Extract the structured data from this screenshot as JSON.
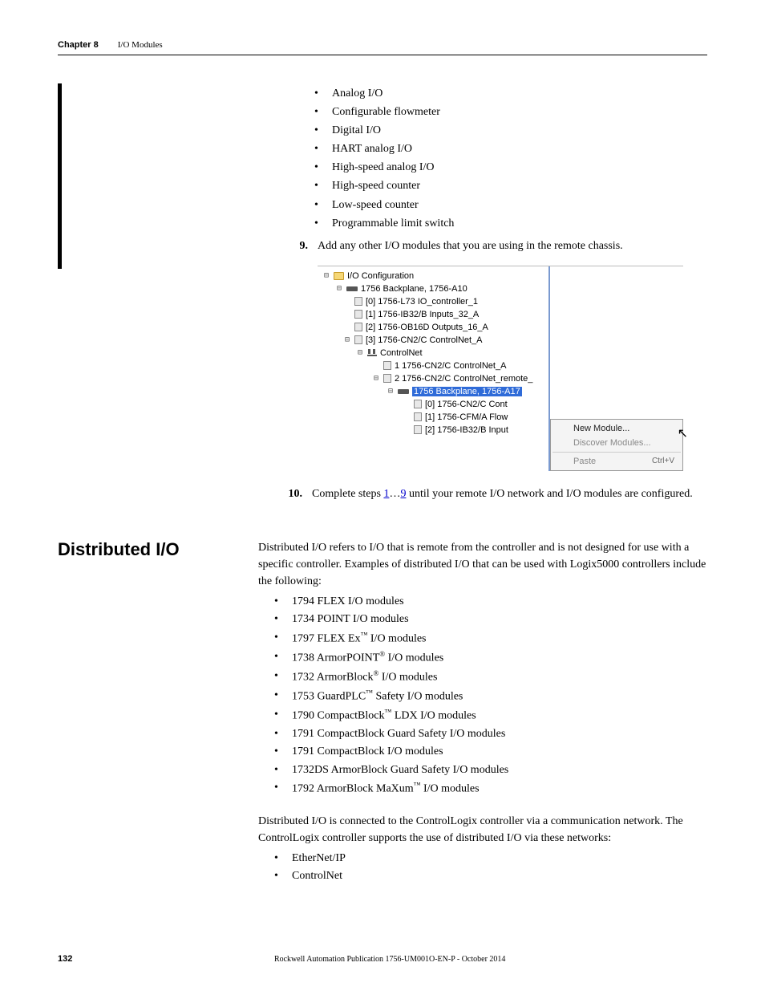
{
  "header": {
    "chapter_label": "Chapter 8",
    "chapter_title": "I/O Modules"
  },
  "io_types": [
    "Analog I/O",
    "Configurable flowmeter",
    "Digital I/O",
    "HART analog I/O",
    "High-speed analog I/O",
    "High-speed counter",
    "Low-speed counter",
    "Programmable limit switch"
  ],
  "step9": {
    "num": "9.",
    "text": "Add any other I/O modules that you are using in the remote chassis."
  },
  "tree": {
    "root": "I/O Configuration",
    "backplane": "1756 Backplane, 1756-A10",
    "items": [
      "[0] 1756-L73 IO_controller_1",
      "[1] 1756-IB32/B Inputs_32_A",
      "[2] 1756-OB16D Outputs_16_A",
      "[3] 1756-CN2/C ControlNet_A"
    ],
    "cnet": "ControlNet",
    "cnet_items": [
      "1 1756-CN2/C ControlNet_A",
      "2 1756-CN2/C ControlNet_remote_"
    ],
    "remote_backplane": "1756 Backplane, 1756-A17",
    "remote_items": [
      "[0] 1756-CN2/C Cont",
      "[1] 1756-CFM/A Flow",
      "[2] 1756-IB32/B Input"
    ]
  },
  "context_menu": {
    "new_module": "New Module...",
    "discover": "Discover Modules...",
    "paste": "Paste",
    "paste_shortcut": "Ctrl+V"
  },
  "step10": {
    "num": "10.",
    "prefix": "Complete steps ",
    "link1": "1",
    "mid": "…",
    "link2": "9",
    "suffix": " until your remote I/O network and I/O modules are configured."
  },
  "section": {
    "heading": "Distributed I/O",
    "intro": "Distributed I/O refers to I/O that is remote from the controller and is not designed for use with a specific controller. Examples of distributed I/O that can be used with Logix5000 controllers include the following:",
    "modules": [
      {
        "t": "1794 FLEX I/O modules"
      },
      {
        "t": "1734 POINT I/O modules"
      },
      {
        "pre": "1797 FLEX Ex",
        "sup": "™",
        "post": " I/O modules"
      },
      {
        "pre": "1738 ArmorPOINT",
        "sup": "®",
        "post": " I/O modules"
      },
      {
        "pre": "1732 ArmorBlock",
        "sup": "®",
        "post": " I/O modules"
      },
      {
        "pre": "1753 GuardPLC",
        "sup": "™",
        "post": " Safety I/O modules"
      },
      {
        "pre": "1790 CompactBlock",
        "sup": "™",
        "post": " LDX I/O modules"
      },
      {
        "t": "1791 CompactBlock Guard Safety I/O modules"
      },
      {
        "t": "1791 CompactBlock I/O modules"
      },
      {
        "t": "1732DS ArmorBlock Guard Safety I/O modules"
      },
      {
        "pre": "1792 ArmorBlock MaXum",
        "sup": "™",
        "post": " I/O modules"
      }
    ],
    "para2": "Distributed I/O is connected to the ControlLogix controller via a communication network. The ControlLogix controller supports the use of distributed I/O via these networks:",
    "networks": [
      "EtherNet/IP",
      "ControlNet"
    ]
  },
  "footer": {
    "page": "132",
    "pub": "Rockwell Automation Publication 1756-UM001O-EN-P - October 2014"
  }
}
